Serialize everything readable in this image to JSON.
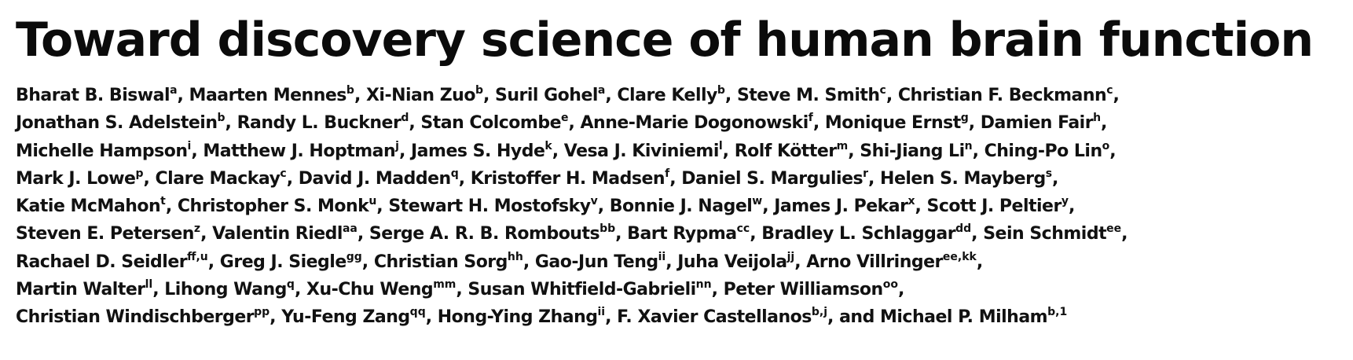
{
  "title": "Toward discovery science of human brain function",
  "author_lines": [
    [
      {
        "name": "Bharat B. Biswal",
        "aff": "a",
        "sep": ", "
      },
      {
        "name": "Maarten Mennes",
        "aff": "b",
        "sep": ", "
      },
      {
        "name": "Xi-Nian Zuo",
        "aff": "b",
        "sep": ", "
      },
      {
        "name": "Suril Gohel",
        "aff": "a",
        "sep": ", "
      },
      {
        "name": "Clare Kelly",
        "aff": "b",
        "sep": ", "
      },
      {
        "name": "Steve M. Smith",
        "aff": "c",
        "sep": ", "
      },
      {
        "name": "Christian F. Beckmann",
        "aff": "c",
        "sep": ","
      }
    ],
    [
      {
        "name": "Jonathan S. Adelstein",
        "aff": "b",
        "sep": ", "
      },
      {
        "name": "Randy L. Buckner",
        "aff": "d",
        "sep": ", "
      },
      {
        "name": "Stan Colcombe",
        "aff": "e",
        "sep": ", "
      },
      {
        "name": "Anne-Marie Dogonowski",
        "aff": "f",
        "sep": ", "
      },
      {
        "name": "Monique Ernst",
        "aff": "g",
        "sep": ", "
      },
      {
        "name": "Damien Fair",
        "aff": "h",
        "sep": ","
      }
    ],
    [
      {
        "name": "Michelle Hampson",
        "aff": "i",
        "sep": ", "
      },
      {
        "name": "Matthew J. Hoptman",
        "aff": "j",
        "sep": ", "
      },
      {
        "name": "James S. Hyde",
        "aff": "k",
        "sep": ", "
      },
      {
        "name": "Vesa J. Kiviniemi",
        "aff": "l",
        "sep": ", "
      },
      {
        "name": "Rolf Kötter",
        "aff": "m",
        "sep": ", "
      },
      {
        "name": "Shi-Jiang Li",
        "aff": "n",
        "sep": ", "
      },
      {
        "name": "Ching-Po Lin",
        "aff": "o",
        "sep": ","
      }
    ],
    [
      {
        "name": "Mark J. Lowe",
        "aff": "p",
        "sep": ", "
      },
      {
        "name": "Clare Mackay",
        "aff": "c",
        "sep": ", "
      },
      {
        "name": "David J. Madden",
        "aff": "q",
        "sep": ", "
      },
      {
        "name": "Kristoffer H. Madsen",
        "aff": "f",
        "sep": ", "
      },
      {
        "name": "Daniel S. Margulies",
        "aff": "r",
        "sep": ", "
      },
      {
        "name": "Helen S. Mayberg",
        "aff": "s",
        "sep": ","
      }
    ],
    [
      {
        "name": "Katie McMahon",
        "aff": "t",
        "sep": ", "
      },
      {
        "name": "Christopher S. Monk",
        "aff": "u",
        "sep": ", "
      },
      {
        "name": "Stewart H. Mostofsky",
        "aff": "v",
        "sep": ", "
      },
      {
        "name": "Bonnie J. Nagel",
        "aff": "w",
        "sep": ", "
      },
      {
        "name": "James J. Pekar",
        "aff": "x",
        "sep": ", "
      },
      {
        "name": "Scott J. Peltier",
        "aff": "y",
        "sep": ","
      }
    ],
    [
      {
        "name": "Steven E. Petersen",
        "aff": "z",
        "sep": ", "
      },
      {
        "name": "Valentin Riedl",
        "aff": "aa",
        "sep": ", "
      },
      {
        "name": "Serge A. R. B. Rombouts",
        "aff": "bb",
        "sep": ", "
      },
      {
        "name": "Bart Rypma",
        "aff": "cc",
        "sep": ", "
      },
      {
        "name": "Bradley L. Schlaggar",
        "aff": "dd",
        "sep": ", "
      },
      {
        "name": "Sein Schmidt",
        "aff": "ee",
        "sep": ","
      }
    ],
    [
      {
        "name": "Rachael D. Seidler",
        "aff": "ff,u",
        "sep": ", "
      },
      {
        "name": "Greg J. Siegle",
        "aff": "gg",
        "sep": ", "
      },
      {
        "name": "Christian Sorg",
        "aff": "hh",
        "sep": ", "
      },
      {
        "name": "Gao-Jun Teng",
        "aff": "ii",
        "sep": ", "
      },
      {
        "name": "Juha Veijola",
        "aff": "jj",
        "sep": ", "
      },
      {
        "name": "Arno Villringer",
        "aff": "ee,kk",
        "sep": ","
      }
    ],
    [
      {
        "name": "Martin Walter",
        "aff": "ll",
        "sep": ", "
      },
      {
        "name": "Lihong Wang",
        "aff": "q",
        "sep": ", "
      },
      {
        "name": "Xu-Chu Weng",
        "aff": "mm",
        "sep": ", "
      },
      {
        "name": "Susan Whitfield-Gabrieli",
        "aff": "nn",
        "sep": ", "
      },
      {
        "name": "Peter Williamson",
        "aff": "oo",
        "sep": ","
      }
    ],
    [
      {
        "name": "Christian Windischberger",
        "aff": "pp",
        "sep": ", "
      },
      {
        "name": "Yu-Feng Zang",
        "aff": "qq",
        "sep": ", "
      },
      {
        "name": "Hong-Ying Zhang",
        "aff": "ii",
        "sep": ", "
      },
      {
        "name": "F. Xavier Castellanos",
        "aff": "b,j",
        "sep": ", and "
      },
      {
        "name": "Michael P. Milham",
        "aff": "b,1",
        "sep": ""
      }
    ]
  ]
}
